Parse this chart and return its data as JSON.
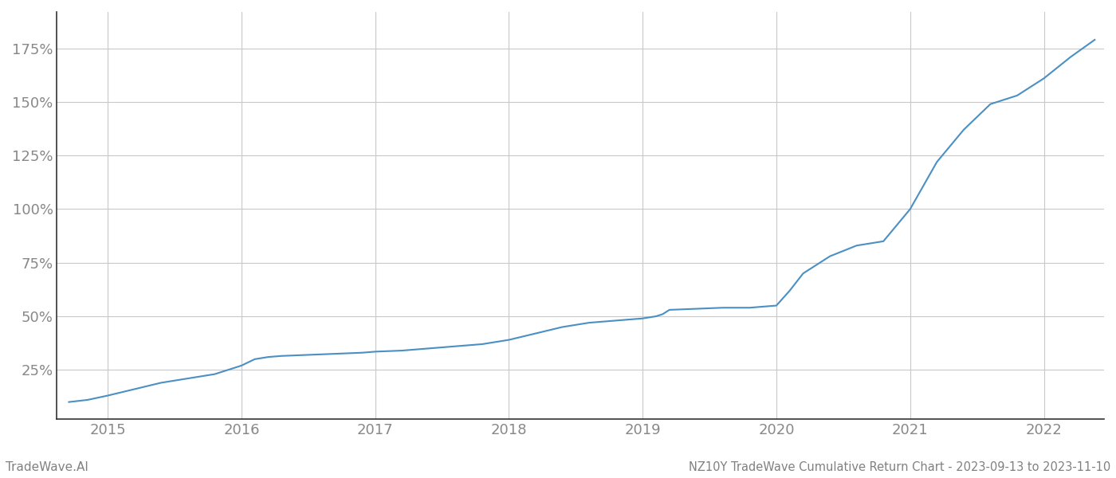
{
  "title": "NZ10Y TradeWave Cumulative Return Chart - 2023-09-13 to 2023-11-10",
  "watermark": "TradeWave.AI",
  "line_color": "#4a90c4",
  "background_color": "#ffffff",
  "grid_color": "#c8c8c8",
  "text_color": "#808080",
  "x_years": [
    2015,
    2016,
    2017,
    2018,
    2019,
    2020,
    2021,
    2022
  ],
  "y_ticks": [
    25,
    50,
    75,
    100,
    125,
    150,
    175
  ],
  "xlim": [
    2014.62,
    2022.45
  ],
  "ylim": [
    2,
    192
  ],
  "data_x": [
    2014.71,
    2014.85,
    2015.0,
    2015.2,
    2015.4,
    2015.6,
    2015.8,
    2016.0,
    2016.05,
    2016.1,
    2016.15,
    2016.2,
    2016.3,
    2016.5,
    2016.7,
    2016.9,
    2017.0,
    2017.2,
    2017.4,
    2017.6,
    2017.8,
    2018.0,
    2018.2,
    2018.4,
    2018.6,
    2018.8,
    2019.0,
    2019.1,
    2019.15,
    2019.2,
    2019.4,
    2019.6,
    2019.8,
    2020.0,
    2020.1,
    2020.2,
    2020.4,
    2020.6,
    2020.8,
    2021.0,
    2021.2,
    2021.4,
    2021.6,
    2021.8,
    2022.0,
    2022.2,
    2022.38
  ],
  "data_y": [
    10,
    11,
    13,
    16,
    19,
    21,
    23,
    27,
    28.5,
    30,
    30.5,
    31,
    31.5,
    32,
    32.5,
    33,
    33.5,
    34,
    35,
    36,
    37,
    39,
    42,
    45,
    47,
    48,
    49,
    50,
    51,
    53,
    53.5,
    54,
    54,
    55,
    62,
    70,
    78,
    83,
    85,
    100,
    122,
    137,
    149,
    153,
    161,
    171,
    179
  ],
  "title_fontsize": 10.5,
  "watermark_fontsize": 11,
  "tick_fontsize": 13,
  "tick_color": "#888888",
  "spine_color": "#333333",
  "left_spine_color": "#333333"
}
